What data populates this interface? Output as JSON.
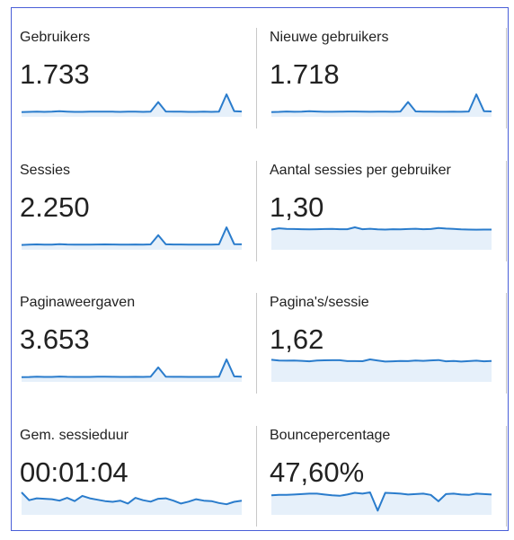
{
  "tiles": [
    {
      "label": "Gebruikers",
      "value": "1.733",
      "spark": [
        40,
        42,
        44,
        42,
        43,
        47,
        44,
        42,
        42,
        43,
        44,
        44,
        43,
        42,
        43,
        43,
        42,
        44,
        125,
        45,
        43,
        43,
        42,
        42,
        43,
        42,
        44,
        190,
        48,
        45
      ]
    },
    {
      "label": "Nieuwe gebruikers",
      "value": "1.718",
      "spark": [
        40,
        41,
        44,
        42,
        43,
        47,
        44,
        42,
        42,
        43,
        44,
        44,
        43,
        42,
        43,
        43,
        42,
        44,
        124,
        45,
        43,
        43,
        42,
        42,
        43,
        42,
        44,
        188,
        47,
        45
      ]
    },
    {
      "label": "Sessies",
      "value": "2.250",
      "spark": [
        50,
        52,
        55,
        53,
        53,
        58,
        54,
        52,
        52,
        53,
        54,
        55,
        54,
        53,
        53,
        54,
        52,
        55,
        150,
        56,
        54,
        54,
        52,
        52,
        53,
        52,
        55,
        230,
        58,
        56
      ]
    },
    {
      "label": "Aantal sessies per gebruiker",
      "value": "1,30",
      "spark": [
        1.28,
        1.36,
        1.32,
        1.31,
        1.3,
        1.29,
        1.3,
        1.31,
        1.32,
        1.3,
        1.3,
        1.42,
        1.3,
        1.33,
        1.29,
        1.28,
        1.3,
        1.29,
        1.31,
        1.33,
        1.3,
        1.31,
        1.38,
        1.34,
        1.32,
        1.29,
        1.28,
        1.27,
        1.28,
        1.28
      ]
    },
    {
      "label": "Paginaweergaven",
      "value": "3.653",
      "spark": [
        80,
        82,
        86,
        84,
        84,
        90,
        85,
        83,
        83,
        84,
        86,
        87,
        85,
        84,
        84,
        85,
        83,
        86,
        245,
        88,
        85,
        85,
        83,
        83,
        84,
        83,
        86,
        380,
        92,
        88
      ]
    },
    {
      "label": "Pagina's/sessie",
      "value": "1,62",
      "spark": [
        1.72,
        1.66,
        1.65,
        1.66,
        1.64,
        1.6,
        1.66,
        1.68,
        1.69,
        1.69,
        1.62,
        1.62,
        1.61,
        1.75,
        1.66,
        1.58,
        1.6,
        1.63,
        1.62,
        1.66,
        1.64,
        1.67,
        1.7,
        1.6,
        1.63,
        1.58,
        1.62,
        1.65,
        1.6,
        1.63
      ]
    },
    {
      "label": "Gem. sessieduur",
      "value": "00:01:04",
      "spark": [
        95,
        62,
        70,
        68,
        66,
        60,
        72,
        58,
        80,
        70,
        64,
        58,
        55,
        60,
        48,
        72,
        62,
        56,
        68,
        70,
        60,
        48,
        56,
        66,
        60,
        58,
        50,
        45,
        55,
        60
      ]
    },
    {
      "label": "Bouncepercentage",
      "value": "47,60%",
      "spark": [
        46,
        47,
        47,
        48,
        49,
        50,
        50,
        48,
        46,
        45,
        48,
        52,
        50,
        53,
        10,
        52,
        51,
        50,
        48,
        49,
        50,
        47,
        32,
        49,
        50,
        48,
        47,
        50,
        49,
        48
      ]
    }
  ]
}
